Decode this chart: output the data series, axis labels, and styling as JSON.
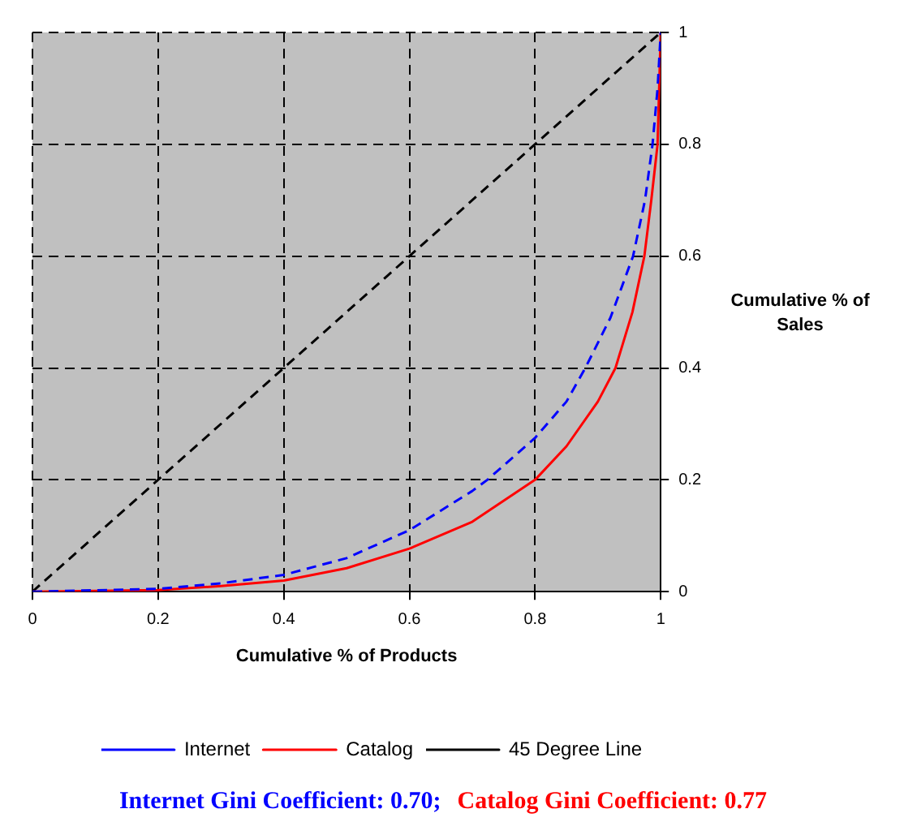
{
  "chart_data": {
    "type": "line",
    "xlabel": "Cumulative % of Products",
    "ylabel": "Cumulative % of Sales",
    "xlim": [
      0,
      1
    ],
    "ylim": [
      0,
      1
    ],
    "xticks": [
      0,
      0.2,
      0.4,
      0.6,
      0.8,
      1
    ],
    "yticks": [
      0,
      0.2,
      0.4,
      0.6,
      0.8,
      1
    ],
    "grid": true,
    "legend": "bottom",
    "marker": "none",
    "series": [
      {
        "name": "Internet",
        "color": "#0000ff",
        "line_style": "dashed",
        "x": [
          0,
          0.2,
          0.3,
          0.4,
          0.5,
          0.6,
          0.7,
          0.724,
          0.8,
          0.85,
          0.88,
          0.92,
          0.956,
          0.975,
          0.987,
          0.995,
          1
        ],
        "values": [
          0,
          0.005,
          0.015,
          0.03,
          0.06,
          0.11,
          0.18,
          0.2,
          0.275,
          0.34,
          0.4,
          0.49,
          0.6,
          0.7,
          0.8,
          0.9,
          1
        ]
      },
      {
        "name": "Catalog",
        "color": "#ff0000",
        "line_style": "solid",
        "x": [
          0,
          0.2,
          0.3,
          0.4,
          0.5,
          0.6,
          0.7,
          0.8,
          0.85,
          0.9,
          0.928,
          0.955,
          0.974,
          0.985,
          0.995,
          1
        ],
        "values": [
          0,
          0.003,
          0.01,
          0.02,
          0.042,
          0.077,
          0.125,
          0.2,
          0.26,
          0.34,
          0.4,
          0.5,
          0.6,
          0.7,
          0.8,
          1
        ]
      },
      {
        "name": "45 Degree Line",
        "color": "#000000",
        "line_style": "dashed",
        "x": [
          0,
          1
        ],
        "values": [
          0,
          1
        ]
      }
    ],
    "annotations": [
      "Internet Gini Coefficient: 0.70;",
      "Catalog Gini Coefficient: 0.77"
    ]
  }
}
